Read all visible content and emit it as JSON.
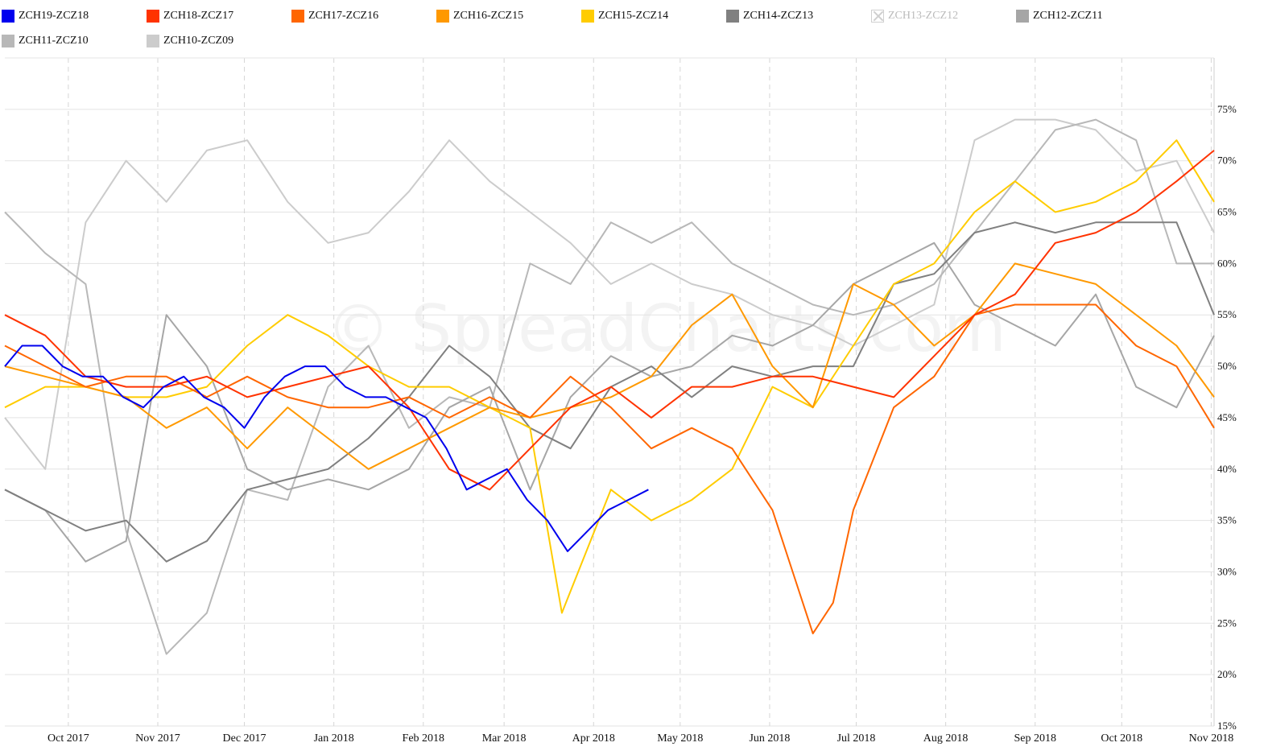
{
  "watermark": "© SpreadCharts.com",
  "chart_data": {
    "type": "line",
    "title": "",
    "xlabel": "",
    "ylabel": "",
    "xlim": [
      "2017-09-09",
      "2018-11-02"
    ],
    "ylim": [
      15,
      80
    ],
    "y_tick_values": [
      15,
      20,
      25,
      30,
      35,
      40,
      45,
      50,
      55,
      60,
      65,
      70,
      75
    ],
    "y_tick_labels": [
      "15%",
      "20%",
      "25%",
      "30%",
      "35%",
      "40%",
      "45%",
      "50%",
      "55%",
      "60%",
      "65%",
      "70%",
      "75%"
    ],
    "y_axis_position": "right",
    "x_tick_values": [
      "2017-10-01",
      "2017-11-01",
      "2017-12-01",
      "2018-01-01",
      "2018-02-01",
      "2018-03-01",
      "2018-04-01",
      "2018-05-01",
      "2018-06-01",
      "2018-07-01",
      "2018-08-01",
      "2018-09-01",
      "2018-10-01",
      "2018-11-01"
    ],
    "x_tick_labels": [
      "Oct 2017",
      "Nov 2017",
      "Dec 2017",
      "Jan 2018",
      "Feb 2018",
      "Mar 2018",
      "Apr 2018",
      "May 2018",
      "Jun 2018",
      "Jul 2018",
      "Aug 2018",
      "Sep 2018",
      "Oct 2018",
      "Nov 2018"
    ],
    "grid": {
      "horizontal": "solid",
      "vertical": "dashed"
    },
    "legend_position": "top-left",
    "series": [
      {
        "name": "ZCH19-ZCZ18",
        "color": "#0000ee",
        "visible": true,
        "x": [
          "2017-09-09",
          "2017-09-15",
          "2017-09-22",
          "2017-09-29",
          "2017-10-06",
          "2017-10-13",
          "2017-10-20",
          "2017-10-27",
          "2017-11-03",
          "2017-11-10",
          "2017-11-17",
          "2017-11-24",
          "2017-12-01",
          "2017-12-08",
          "2017-12-15",
          "2017-12-22",
          "2017-12-29",
          "2018-01-05",
          "2018-01-12",
          "2018-01-19",
          "2018-01-26",
          "2018-02-02",
          "2018-02-09",
          "2018-02-16",
          "2018-02-23",
          "2018-03-02",
          "2018-03-09",
          "2018-03-16",
          "2018-03-23",
          "2018-03-30",
          "2018-04-06",
          "2018-04-13",
          "2018-04-20"
        ],
        "y": [
          50,
          52,
          52,
          50,
          49,
          49,
          47,
          46,
          48,
          49,
          47,
          46,
          44,
          47,
          49,
          50,
          50,
          48,
          47,
          47,
          46,
          45,
          42,
          38,
          39,
          40,
          37,
          35,
          32,
          34,
          36,
          37,
          38
        ]
      },
      {
        "name": "ZCH18-ZCZ17",
        "color": "#ff3300",
        "visible": true,
        "x": [
          "2017-09-09",
          "2017-09-23",
          "2017-10-07",
          "2017-10-21",
          "2017-11-04",
          "2017-11-18",
          "2017-12-02",
          "2017-12-16",
          "2017-12-30",
          "2018-01-13",
          "2018-01-27",
          "2018-02-10",
          "2018-02-24",
          "2018-03-10",
          "2018-03-24",
          "2018-04-07",
          "2018-04-21",
          "2018-05-05",
          "2018-05-19",
          "2018-06-02",
          "2018-06-16",
          "2018-06-30",
          "2018-07-14",
          "2018-07-28",
          "2018-08-11",
          "2018-08-25",
          "2018-09-08",
          "2018-09-22",
          "2018-10-06",
          "2018-10-20",
          "2018-11-02"
        ],
        "y": [
          55,
          53,
          49,
          48,
          48,
          49,
          47,
          48,
          49,
          50,
          46,
          40,
          38,
          42,
          46,
          48,
          45,
          48,
          48,
          49,
          49,
          48,
          47,
          51,
          55,
          57,
          62,
          63,
          65,
          68,
          71
        ]
      },
      {
        "name": "ZCH17-ZCZ16",
        "color": "#ff6600",
        "visible": true,
        "x": [
          "2017-09-09",
          "2017-09-23",
          "2017-10-07",
          "2017-10-21",
          "2017-11-04",
          "2017-11-18",
          "2017-12-02",
          "2017-12-16",
          "2017-12-30",
          "2018-01-13",
          "2018-01-27",
          "2018-02-10",
          "2018-02-24",
          "2018-03-10",
          "2018-03-24",
          "2018-04-07",
          "2018-04-21",
          "2018-05-05",
          "2018-05-19",
          "2018-06-02",
          "2018-06-09",
          "2018-06-16",
          "2018-06-23",
          "2018-06-30",
          "2018-07-14",
          "2018-07-28",
          "2018-08-11",
          "2018-08-25",
          "2018-09-08",
          "2018-09-22",
          "2018-10-06",
          "2018-10-20",
          "2018-11-02"
        ],
        "y": [
          52,
          50,
          48,
          49,
          49,
          47,
          49,
          47,
          46,
          46,
          47,
          45,
          47,
          45,
          49,
          46,
          42,
          44,
          42,
          36,
          30,
          24,
          27,
          36,
          46,
          49,
          55,
          56,
          56,
          56,
          52,
          50,
          44
        ]
      },
      {
        "name": "ZCH16-ZCZ15",
        "color": "#ff9900",
        "visible": true,
        "x": [
          "2017-09-09",
          "2017-09-23",
          "2017-10-07",
          "2017-10-21",
          "2017-11-04",
          "2017-11-18",
          "2017-12-02",
          "2017-12-16",
          "2017-12-30",
          "2018-01-13",
          "2018-01-27",
          "2018-02-10",
          "2018-02-24",
          "2018-03-10",
          "2018-03-24",
          "2018-04-07",
          "2018-04-21",
          "2018-05-05",
          "2018-05-19",
          "2018-06-02",
          "2018-06-16",
          "2018-06-30",
          "2018-07-14",
          "2018-07-28",
          "2018-08-11",
          "2018-08-25",
          "2018-09-08",
          "2018-09-22",
          "2018-10-06",
          "2018-10-20",
          "2018-11-02"
        ],
        "y": [
          50,
          49,
          48,
          47,
          44,
          46,
          42,
          46,
          43,
          40,
          42,
          44,
          46,
          45,
          46,
          47,
          49,
          54,
          57,
          50,
          46,
          58,
          56,
          52,
          55,
          60,
          59,
          58,
          55,
          52,
          47
        ]
      },
      {
        "name": "ZCH15-ZCZ14",
        "color": "#ffcc00",
        "visible": true,
        "x": [
          "2017-09-09",
          "2017-09-23",
          "2017-10-07",
          "2017-10-21",
          "2017-11-04",
          "2017-11-18",
          "2017-12-02",
          "2017-12-16",
          "2017-12-30",
          "2018-01-13",
          "2018-01-27",
          "2018-02-10",
          "2018-02-24",
          "2018-03-10",
          "2018-03-21",
          "2018-04-07",
          "2018-04-21",
          "2018-05-05",
          "2018-05-19",
          "2018-06-02",
          "2018-06-16",
          "2018-06-30",
          "2018-07-14",
          "2018-07-28",
          "2018-08-11",
          "2018-08-25",
          "2018-09-08",
          "2018-09-22",
          "2018-10-06",
          "2018-10-20",
          "2018-11-02"
        ],
        "y": [
          46,
          48,
          48,
          47,
          47,
          48,
          52,
          55,
          53,
          50,
          48,
          48,
          46,
          44,
          26,
          38,
          35,
          37,
          40,
          48,
          46,
          52,
          58,
          60,
          65,
          68,
          65,
          66,
          68,
          72,
          66
        ]
      },
      {
        "name": "ZCH14-ZCZ13",
        "color": "#808080",
        "visible": true,
        "x": [
          "2017-09-09",
          "2017-09-23",
          "2017-10-07",
          "2017-10-21",
          "2017-11-04",
          "2017-11-18",
          "2017-12-02",
          "2017-12-16",
          "2017-12-30",
          "2018-01-13",
          "2018-01-27",
          "2018-02-10",
          "2018-02-24",
          "2018-03-10",
          "2018-03-24",
          "2018-04-07",
          "2018-04-21",
          "2018-05-05",
          "2018-05-19",
          "2018-06-02",
          "2018-06-16",
          "2018-06-30",
          "2018-07-14",
          "2018-07-28",
          "2018-08-11",
          "2018-08-25",
          "2018-09-08",
          "2018-09-22",
          "2018-10-06",
          "2018-10-20",
          "2018-11-02"
        ],
        "y": [
          38,
          36,
          34,
          35,
          31,
          33,
          38,
          39,
          40,
          43,
          47,
          52,
          49,
          44,
          42,
          48,
          50,
          47,
          50,
          49,
          50,
          50,
          58,
          59,
          63,
          64,
          63,
          64,
          64,
          64,
          55
        ]
      },
      {
        "name": "ZCH13-ZCZ12",
        "color": "#999999",
        "visible": false,
        "x": [],
        "y": []
      },
      {
        "name": "ZCH12-ZCZ11",
        "color": "#a6a6a6",
        "visible": true,
        "x": [
          "2017-09-09",
          "2017-09-23",
          "2017-10-07",
          "2017-10-21",
          "2017-11-04",
          "2017-11-18",
          "2017-12-02",
          "2017-12-16",
          "2017-12-30",
          "2018-01-13",
          "2018-01-27",
          "2018-02-10",
          "2018-02-24",
          "2018-03-10",
          "2018-03-24",
          "2018-04-07",
          "2018-04-21",
          "2018-05-05",
          "2018-05-19",
          "2018-06-02",
          "2018-06-16",
          "2018-06-30",
          "2018-07-14",
          "2018-07-28",
          "2018-08-11",
          "2018-08-25",
          "2018-09-08",
          "2018-09-22",
          "2018-10-06",
          "2018-10-20",
          "2018-11-02"
        ],
        "y": [
          38,
          36,
          31,
          33,
          55,
          50,
          40,
          38,
          39,
          38,
          40,
          46,
          48,
          38,
          47,
          51,
          49,
          50,
          53,
          52,
          54,
          58,
          60,
          62,
          56,
          54,
          52,
          57,
          48,
          46,
          53
        ]
      },
      {
        "name": "ZCH11-ZCZ10",
        "color": "#b8b8b8",
        "visible": true,
        "x": [
          "2017-09-09",
          "2017-09-23",
          "2017-10-07",
          "2017-10-21",
          "2017-11-04",
          "2017-11-18",
          "2017-12-02",
          "2017-12-16",
          "2017-12-30",
          "2018-01-13",
          "2018-01-27",
          "2018-02-10",
          "2018-02-24",
          "2018-03-10",
          "2018-03-24",
          "2018-04-07",
          "2018-04-21",
          "2018-05-05",
          "2018-05-19",
          "2018-06-02",
          "2018-06-16",
          "2018-06-30",
          "2018-07-14",
          "2018-07-28",
          "2018-08-11",
          "2018-08-25",
          "2018-09-08",
          "2018-09-22",
          "2018-10-06",
          "2018-10-20",
          "2018-11-02"
        ],
        "y": [
          65,
          61,
          58,
          34,
          22,
          26,
          38,
          37,
          48,
          52,
          44,
          47,
          46,
          60,
          58,
          64,
          62,
          64,
          60,
          58,
          56,
          55,
          56,
          58,
          63,
          68,
          73,
          74,
          72,
          60,
          60
        ]
      },
      {
        "name": "ZCH10-ZCZ09",
        "color": "#cccccc",
        "visible": true,
        "x": [
          "2017-09-09",
          "2017-09-23",
          "2017-10-07",
          "2017-10-21",
          "2017-11-04",
          "2017-11-18",
          "2017-12-02",
          "2017-12-16",
          "2017-12-30",
          "2018-01-13",
          "2018-01-27",
          "2018-02-10",
          "2018-02-24",
          "2018-03-10",
          "2018-03-24",
          "2018-04-07",
          "2018-04-21",
          "2018-05-05",
          "2018-05-19",
          "2018-06-02",
          "2018-06-16",
          "2018-06-30",
          "2018-07-14",
          "2018-07-28",
          "2018-08-11",
          "2018-08-25",
          "2018-09-08",
          "2018-09-22",
          "2018-10-06",
          "2018-10-20",
          "2018-11-02"
        ],
        "y": [
          45,
          40,
          64,
          70,
          66,
          71,
          72,
          66,
          62,
          63,
          67,
          72,
          68,
          65,
          62,
          58,
          60,
          58,
          57,
          55,
          54,
          52,
          54,
          56,
          72,
          74,
          74,
          73,
          69,
          70,
          63
        ]
      }
    ]
  }
}
